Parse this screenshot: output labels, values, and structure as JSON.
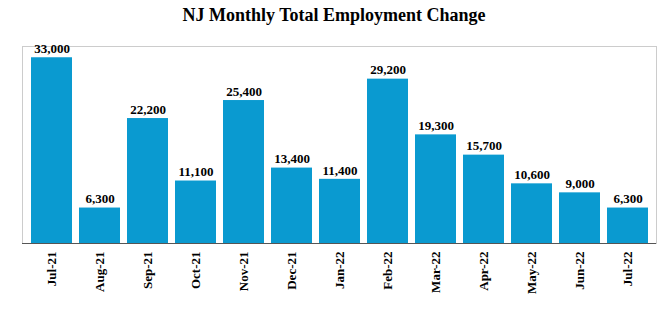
{
  "chart_data": {
    "type": "bar",
    "title": "NJ Monthly Total Employment Change",
    "categories": [
      "Jul-21",
      "Aug-21",
      "Sep-21",
      "Oct-21",
      "Nov-21",
      "Dec-21",
      "Jan-22",
      "Feb-22",
      "Mar-22",
      "Apr-22",
      "May-22",
      "Jun-22",
      "Jul-22"
    ],
    "values": [
      33000,
      6300,
      22200,
      11100,
      25400,
      13400,
      11400,
      29200,
      19300,
      15700,
      10600,
      9000,
      6300
    ],
    "value_labels": [
      "33,000",
      "6,300",
      "22,200",
      "11,100",
      "25,400",
      "13,400",
      "11,400",
      "29,200",
      "19,300",
      "15,700",
      "10,600",
      "9,000",
      "6,300"
    ],
    "color": "#0a9ad0",
    "ylim": [
      0,
      35000
    ],
    "yticks": [],
    "grid": false,
    "data_labels": true,
    "tick_labels": "x"
  }
}
